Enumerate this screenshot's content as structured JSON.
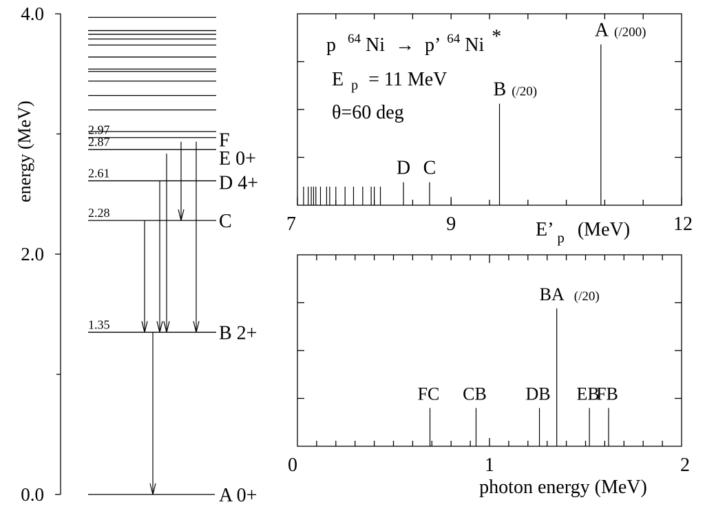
{
  "level_scheme": {
    "axis": {
      "label": "energy (MeV)",
      "ticks": [
        {
          "value": 0.0,
          "label": "0.0"
        },
        {
          "value": 2.0,
          "label": "2.0"
        },
        {
          "value": 4.0,
          "label": "4.0"
        }
      ],
      "minor_ticks": [
        1.0,
        3.0
      ]
    },
    "named_levels": [
      {
        "energy": 0.0,
        "value_label": "",
        "state_label": "A 0+"
      },
      {
        "energy": 1.35,
        "value_label": "1.35",
        "state_label": "B 2+"
      },
      {
        "energy": 2.28,
        "value_label": "2.28",
        "state_label": "C"
      },
      {
        "energy": 2.61,
        "value_label": "2.61",
        "state_label": "D 4+"
      },
      {
        "energy": 2.87,
        "value_label": "2.87",
        "state_label": "E 0+"
      },
      {
        "energy": 2.97,
        "value_label": "2.97",
        "state_label": "F"
      }
    ],
    "upper_levels": [
      3.02,
      3.2,
      3.32,
      3.44,
      3.52,
      3.54,
      3.64,
      3.74,
      3.79,
      3.83,
      3.86,
      3.97
    ],
    "transitions": [
      {
        "from": "F",
        "to": "C"
      },
      {
        "from": "C",
        "to": "B"
      },
      {
        "from": "D",
        "to": "B"
      },
      {
        "from": "E",
        "to": "B"
      },
      {
        "from": "F",
        "to": "B"
      },
      {
        "from": "B",
        "to": "A"
      }
    ]
  },
  "proton_spectrum": {
    "reaction": {
      "p1": "p",
      "mass1": "64",
      "el1": "Ni",
      "arrow": "→",
      "p2": "p’",
      "mass2": "64",
      "el2": "Ni",
      "star": "*"
    },
    "beam_energy": {
      "symbol": "E",
      "sub": "p",
      "value": "= 11 MeV"
    },
    "angle": "θ=60 deg",
    "xlabel": {
      "main": "E’",
      "sub": "p",
      "unit": "(MeV)"
    },
    "xticks": [
      {
        "value": 7,
        "label": "7"
      },
      {
        "value": 9,
        "label": "9"
      },
      {
        "value": 12,
        "label": "12"
      }
    ],
    "lines": [
      {
        "label": "A",
        "scale": "(/200)",
        "energy": 10.95,
        "height": 0.84
      },
      {
        "label": "B",
        "scale": "(/20)",
        "energy": 9.63,
        "height": 0.53
      },
      {
        "label": "C",
        "scale": "",
        "energy": 8.72,
        "height": 0.12
      },
      {
        "label": "D",
        "scale": "",
        "energy": 8.38,
        "height": 0.12
      }
    ],
    "small_lines": [
      7.08,
      7.14,
      7.18,
      7.21,
      7.24,
      7.3,
      7.38,
      7.42,
      7.5,
      7.62,
      7.73,
      7.85,
      7.96,
      8.0,
      8.08
    ]
  },
  "photon_spectrum": {
    "xlabel": "photon energy (MeV)",
    "xticks": [
      {
        "value": 0,
        "label": "0"
      },
      {
        "value": 1,
        "label": "1"
      },
      {
        "value": 2,
        "label": "2"
      }
    ],
    "lines": [
      {
        "label": "FC",
        "scale": "",
        "energy": 0.69,
        "height": 0.2
      },
      {
        "label": "CB",
        "scale": "",
        "energy": 0.93,
        "height": 0.2
      },
      {
        "label": "DB",
        "scale": "",
        "energy": 1.26,
        "height": 0.2
      },
      {
        "label": "BA",
        "scale": "(/20)",
        "energy": 1.35,
        "height": 0.72
      },
      {
        "label": "EB",
        "scale": "",
        "energy": 1.52,
        "height": 0.2
      },
      {
        "label": "FB",
        "scale": "",
        "energy": 1.62,
        "height": 0.2
      }
    ]
  }
}
